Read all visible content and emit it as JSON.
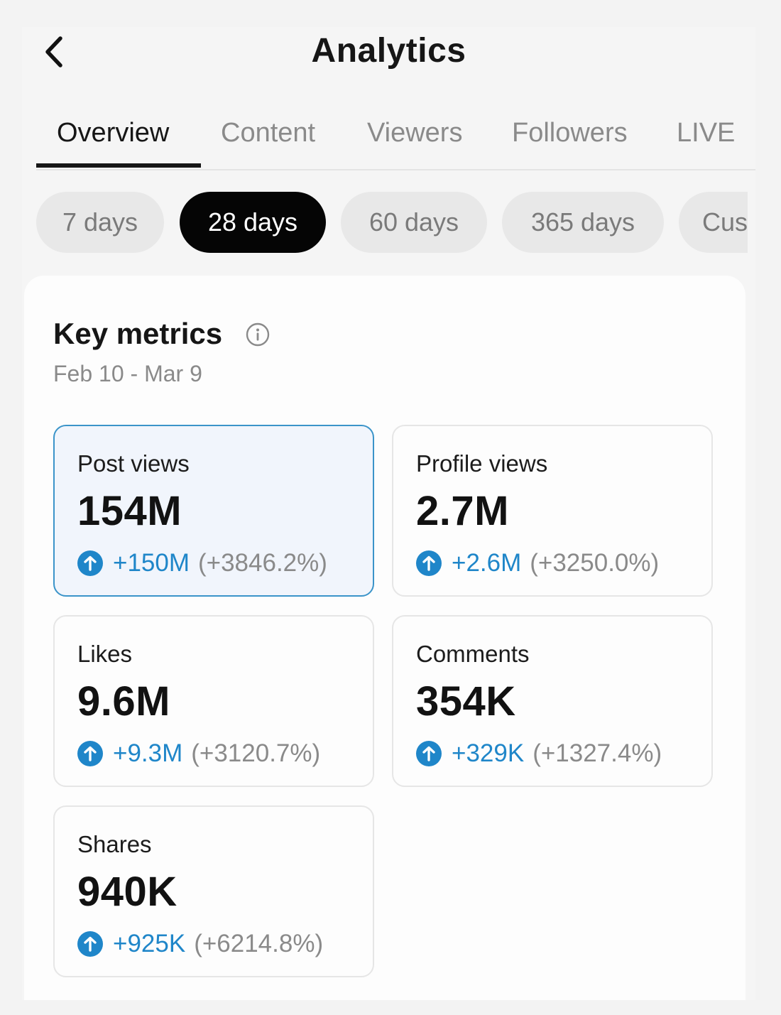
{
  "header": {
    "title": "Analytics"
  },
  "tabs": [
    {
      "label": "Overview",
      "active": true
    },
    {
      "label": "Content",
      "active": false
    },
    {
      "label": "Viewers",
      "active": false
    },
    {
      "label": "Followers",
      "active": false
    },
    {
      "label": "LIVE",
      "active": false
    }
  ],
  "periods": [
    {
      "label": "7 days",
      "selected": false
    },
    {
      "label": "28 days",
      "selected": true
    },
    {
      "label": "60 days",
      "selected": false
    },
    {
      "label": "365 days",
      "selected": false
    },
    {
      "label": "Cus",
      "selected": false
    }
  ],
  "key_metrics": {
    "title": "Key metrics",
    "info_icon": "info-icon",
    "date_range": "Feb 10 - Mar 9",
    "items": [
      {
        "label": "Post views",
        "value": "154M",
        "delta": "+150M",
        "percent": "(+3846.2%)",
        "selected": true
      },
      {
        "label": "Profile views",
        "value": "2.7M",
        "delta": "+2.6M",
        "percent": "(+3250.0%)",
        "selected": false
      },
      {
        "label": "Likes",
        "value": "9.6M",
        "delta": "+9.3M",
        "percent": "(+3120.7%)",
        "selected": false
      },
      {
        "label": "Comments",
        "value": "354K",
        "delta": "+329K",
        "percent": "(+1327.4%)",
        "selected": false
      },
      {
        "label": "Shares",
        "value": "940K",
        "delta": "+925K",
        "percent": "(+6214.8%)",
        "selected": false
      }
    ]
  },
  "colors": {
    "accent_blue": "#1f86c9",
    "selected_border": "#3b94c9",
    "selected_chip": "#050505"
  }
}
